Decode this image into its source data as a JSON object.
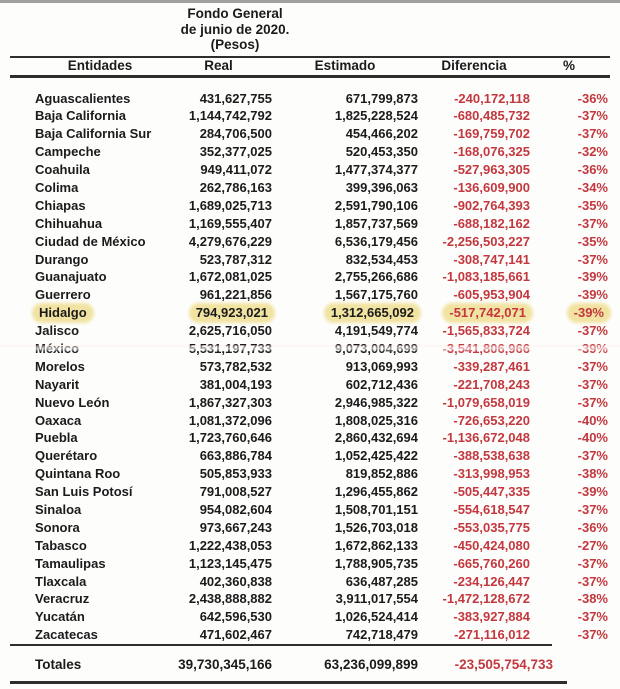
{
  "title": {
    "line1": "Fondo General",
    "line2": "de junio de 2020.",
    "line3": "(Pesos)"
  },
  "colors": {
    "negative_text": "#c3383e",
    "body_text": "#1b1b1b",
    "highlight": "#f1e3a1"
  },
  "table": {
    "columns": [
      "Entidades",
      "Real",
      "Estimado",
      "Diferencia",
      "%"
    ],
    "rows": [
      {
        "name": "Aguascalientes",
        "real": "431,627,755",
        "estimado": "671,799,873",
        "diferencia": "-240,172,118",
        "pct": "-36%",
        "highlighted": false
      },
      {
        "name": "Baja California",
        "real": "1,144,742,792",
        "estimado": "1,825,228,524",
        "diferencia": "-680,485,732",
        "pct": "-37%",
        "highlighted": false
      },
      {
        "name": "Baja California Sur",
        "real": "284,706,500",
        "estimado": "454,466,202",
        "diferencia": "-169,759,702",
        "pct": "-37%",
        "highlighted": false
      },
      {
        "name": "Campeche",
        "real": "352,377,025",
        "estimado": "520,453,350",
        "diferencia": "-168,076,325",
        "pct": "-32%",
        "highlighted": false
      },
      {
        "name": "Coahuila",
        "real": "949,411,072",
        "estimado": "1,477,374,377",
        "diferencia": "-527,963,305",
        "pct": "-36%",
        "highlighted": false
      },
      {
        "name": "Colima",
        "real": "262,786,163",
        "estimado": "399,396,063",
        "diferencia": "-136,609,900",
        "pct": "-34%",
        "highlighted": false
      },
      {
        "name": "Chiapas",
        "real": "1,689,025,713",
        "estimado": "2,591,790,106",
        "diferencia": "-902,764,393",
        "pct": "-35%",
        "highlighted": false
      },
      {
        "name": "Chihuahua",
        "real": "1,169,555,407",
        "estimado": "1,857,737,569",
        "diferencia": "-688,182,162",
        "pct": "-37%",
        "highlighted": false
      },
      {
        "name": "Ciudad de México",
        "real": "4,279,676,229",
        "estimado": "6,536,179,456",
        "diferencia": "-2,256,503,227",
        "pct": "-35%",
        "highlighted": false
      },
      {
        "name": "Durango",
        "real": "523,787,312",
        "estimado": "832,534,453",
        "diferencia": "-308,747,141",
        "pct": "-37%",
        "highlighted": false
      },
      {
        "name": "Guanajuato",
        "real": "1,672,081,025",
        "estimado": "2,755,266,686",
        "diferencia": "-1,083,185,661",
        "pct": "-39%",
        "highlighted": false
      },
      {
        "name": "Guerrero",
        "real": "961,221,856",
        "estimado": "1,567,175,760",
        "diferencia": "-605,953,904",
        "pct": "-39%",
        "highlighted": false
      },
      {
        "name": "Hidalgo",
        "real": "794,923,021",
        "estimado": "1,312,665,092",
        "diferencia": "-517,742,071",
        "pct": "-39%",
        "highlighted": true
      },
      {
        "name": "Jalisco",
        "real": "2,625,716,050",
        "estimado": "4,191,549,774",
        "diferencia": "-1,565,833,724",
        "pct": "-37%",
        "highlighted": false
      },
      {
        "name": "México",
        "real": "5,531,197,733",
        "estimado": "9,073,004,699",
        "diferencia": "-3,541,806,966",
        "pct": "-39%",
        "highlighted": false
      },
      {
        "name": "Morelos",
        "real": "573,782,532",
        "estimado": "913,069,993",
        "diferencia": "-339,287,461",
        "pct": "-37%",
        "highlighted": false
      },
      {
        "name": "Nayarit",
        "real": "381,004,193",
        "estimado": "602,712,436",
        "diferencia": "-221,708,243",
        "pct": "-37%",
        "highlighted": false
      },
      {
        "name": "Nuevo León",
        "real": "1,867,327,303",
        "estimado": "2,946,985,322",
        "diferencia": "-1,079,658,019",
        "pct": "-37%",
        "highlighted": false
      },
      {
        "name": "Oaxaca",
        "real": "1,081,372,096",
        "estimado": "1,808,025,316",
        "diferencia": "-726,653,220",
        "pct": "-40%",
        "highlighted": false
      },
      {
        "name": "Puebla",
        "real": "1,723,760,646",
        "estimado": "2,860,432,694",
        "diferencia": "-1,136,672,048",
        "pct": "-40%",
        "highlighted": false
      },
      {
        "name": "Querétaro",
        "real": "663,886,784",
        "estimado": "1,052,425,422",
        "diferencia": "-388,538,638",
        "pct": "-37%",
        "highlighted": false
      },
      {
        "name": "Quintana Roo",
        "real": "505,853,933",
        "estimado": "819,852,886",
        "diferencia": "-313,998,953",
        "pct": "-38%",
        "highlighted": false
      },
      {
        "name": "San Luis Potosí",
        "real": "791,008,527",
        "estimado": "1,296,455,862",
        "diferencia": "-505,447,335",
        "pct": "-39%",
        "highlighted": false
      },
      {
        "name": "Sinaloa",
        "real": "954,082,604",
        "estimado": "1,508,701,151",
        "diferencia": "-554,618,547",
        "pct": "-37%",
        "highlighted": false
      },
      {
        "name": "Sonora",
        "real": "973,667,243",
        "estimado": "1,526,703,018",
        "diferencia": "-553,035,775",
        "pct": "-36%",
        "highlighted": false
      },
      {
        "name": "Tabasco",
        "real": "1,222,438,053",
        "estimado": "1,672,862,133",
        "diferencia": "-450,424,080",
        "pct": "-27%",
        "highlighted": false
      },
      {
        "name": "Tamaulipas",
        "real": "1,123,145,475",
        "estimado": "1,788,905,735",
        "diferencia": "-665,760,260",
        "pct": "-37%",
        "highlighted": false
      },
      {
        "name": "Tlaxcala",
        "real": "402,360,838",
        "estimado": "636,487,285",
        "diferencia": "-234,126,447",
        "pct": "-37%",
        "highlighted": false
      },
      {
        "name": "Veracruz",
        "real": "2,438,888,882",
        "estimado": "3,911,017,554",
        "diferencia": "-1,472,128,672",
        "pct": "-38%",
        "highlighted": false
      },
      {
        "name": "Yucatán",
        "real": "642,596,530",
        "estimado": "1,026,524,414",
        "diferencia": "-383,927,884",
        "pct": "-37%",
        "highlighted": false
      },
      {
        "name": "Zacatecas",
        "real": "471,602,467",
        "estimado": "742,718,479",
        "diferencia": "-271,116,012",
        "pct": "-37%",
        "highlighted": false
      }
    ],
    "totals": {
      "label": "Totales",
      "real": "39,730,345,166",
      "estimado": "63,236,099,899",
      "diferencia": "-23,505,754,733",
      "pct": ""
    }
  }
}
